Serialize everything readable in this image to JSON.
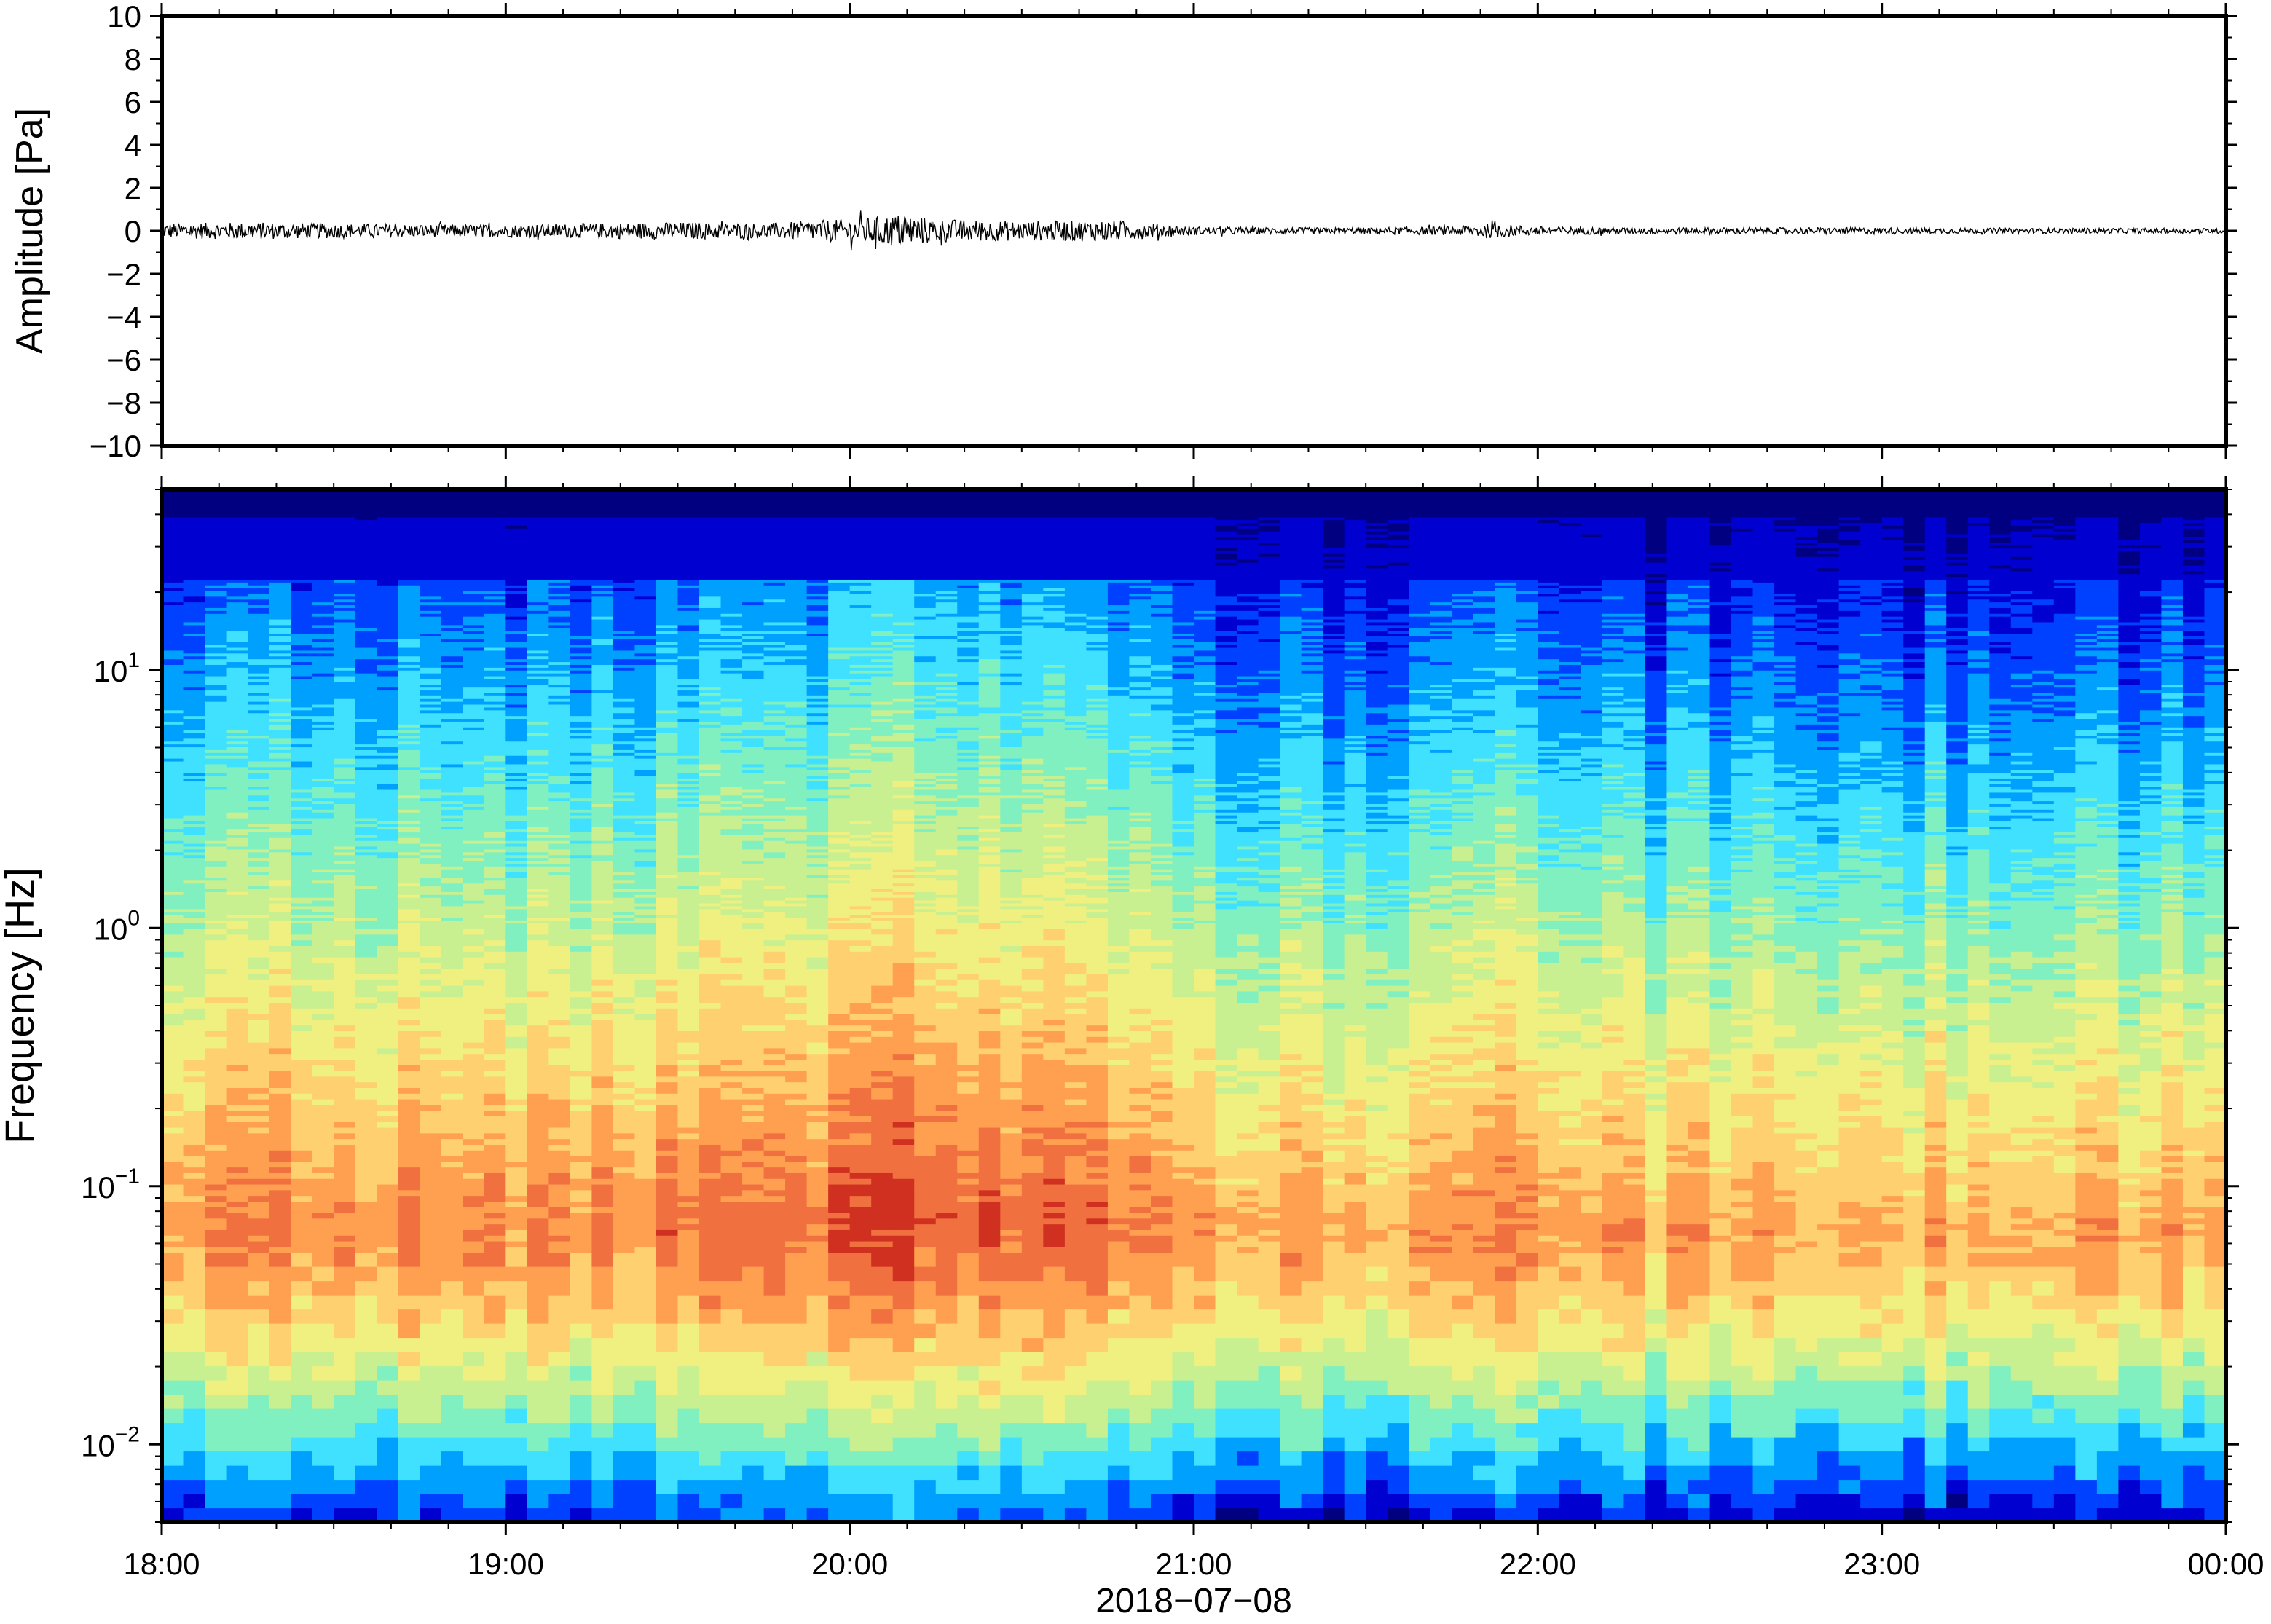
{
  "chart_data": [
    {
      "type": "line",
      "ylabel": "Amplitude [Pa]",
      "ylim": [
        -10,
        10
      ],
      "y_ticks": [
        10,
        8,
        6,
        4,
        2,
        0,
        -2,
        -4,
        -6,
        -8,
        -10
      ],
      "y_tick_labels": [
        "10",
        "8",
        "6",
        "4",
        "2",
        "0",
        "−2",
        "−4",
        "−6",
        "−8",
        "−10"
      ],
      "x_range": [
        "18:00",
        "00:00"
      ],
      "grid": false,
      "series": [
        {
          "color": "#000000",
          "x_hours": [
            18.0,
            18.25,
            18.5,
            18.75,
            19.0,
            19.25,
            19.5,
            19.75,
            20.0,
            20.15,
            20.25,
            20.5,
            20.75,
            21.0,
            21.25,
            21.5,
            21.75,
            21.85,
            22.0,
            22.25,
            22.5,
            22.75,
            23.0,
            23.25,
            23.5,
            23.75,
            24.0
          ],
          "envelope": [
            0.35,
            0.4,
            0.35,
            0.3,
            0.3,
            0.35,
            0.4,
            0.35,
            0.55,
            0.8,
            0.55,
            0.45,
            0.5,
            0.2,
            0.15,
            0.15,
            0.2,
            0.35,
            0.2,
            0.15,
            0.15,
            0.15,
            0.15,
            0.12,
            0.12,
            0.12,
            0.12
          ]
        }
      ]
    },
    {
      "type": "heatmap",
      "xlabel": "2018−07−08",
      "ylabel": "Frequency [Hz]",
      "y_scale": "log",
      "ylim": [
        0.005,
        50
      ],
      "x_ticks": [
        "18:00",
        "19:00",
        "20:00",
        "21:00",
        "22:00",
        "23:00",
        "00:00"
      ],
      "y_ticks": [
        {
          "value": 0.01,
          "base": "10",
          "exp": "−2"
        },
        {
          "value": 0.1,
          "base": "10",
          "exp": "−1"
        },
        {
          "value": 1,
          "base": "10",
          "exp": "0"
        },
        {
          "value": 10,
          "base": "10",
          "exp": "1"
        }
      ],
      "colormap": "jet",
      "colors": [
        "#000080",
        "#0000d0",
        "#0040ff",
        "#00a0ff",
        "#40e0ff",
        "#80f0c0",
        "#c8f090",
        "#f0f080",
        "#ffd070",
        "#ffa050",
        "#f07040",
        "#d03020"
      ],
      "peak_frequency_hz": 0.07,
      "peak_times": [
        "18:20",
        "18:40",
        "19:20",
        "20:00",
        "20:10",
        "20:30",
        "20:45",
        "21:50",
        "23:30"
      ],
      "intensity_x_hours": [
        18.0,
        18.25,
        18.5,
        18.75,
        19.0,
        19.25,
        19.5,
        19.75,
        20.0,
        20.15,
        20.25,
        20.5,
        20.75,
        21.0,
        21.25,
        21.5,
        21.75,
        21.85,
        22.0,
        22.25,
        22.5,
        22.75,
        23.0,
        23.25,
        23.5,
        23.75,
        24.0
      ],
      "intensity_level": [
        0.35,
        0.4,
        0.35,
        0.3,
        0.3,
        0.35,
        0.4,
        0.35,
        0.55,
        0.8,
        0.55,
        0.45,
        0.5,
        0.2,
        0.15,
        0.15,
        0.2,
        0.35,
        0.2,
        0.15,
        0.15,
        0.15,
        0.15,
        0.12,
        0.12,
        0.12,
        0.12
      ]
    }
  ]
}
